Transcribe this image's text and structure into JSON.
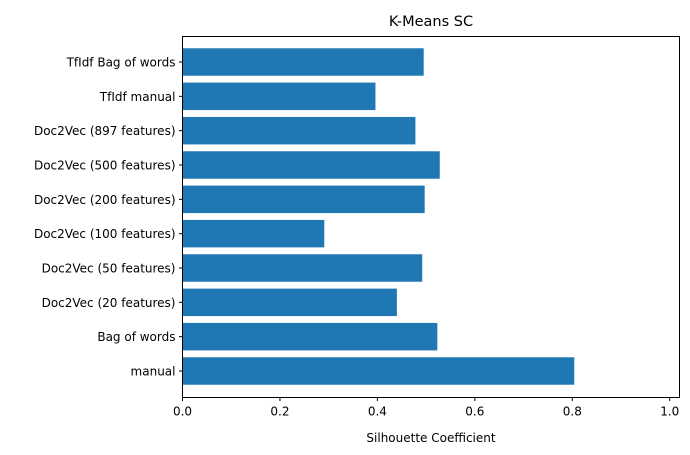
{
  "chart_data": {
    "type": "bar",
    "orientation": "horizontal",
    "title": "K-Means SC",
    "xlabel": "Silhouette Coefficient",
    "ylabel": "",
    "categories": [
      "manual",
      "Bag of words",
      "Doc2Vec (20 features)",
      "Doc2Vec (50 features)",
      "Doc2Vec (100 features)",
      "Doc2Vec (200 features)",
      "Doc2Vec (500 features)",
      "Doc2Vec (897 features)",
      "TfIdf manual",
      "TfIdf Bag of words"
    ],
    "values": [
      0.804,
      0.523,
      0.44,
      0.492,
      0.291,
      0.497,
      0.528,
      0.478,
      0.396,
      0.495
    ],
    "xlim": [
      0,
      1.02
    ],
    "xticks": [
      "0.0",
      "0.2",
      "0.4",
      "0.6",
      "0.8",
      "1.0"
    ],
    "grid": false,
    "bar_color": "#1f77b4"
  }
}
